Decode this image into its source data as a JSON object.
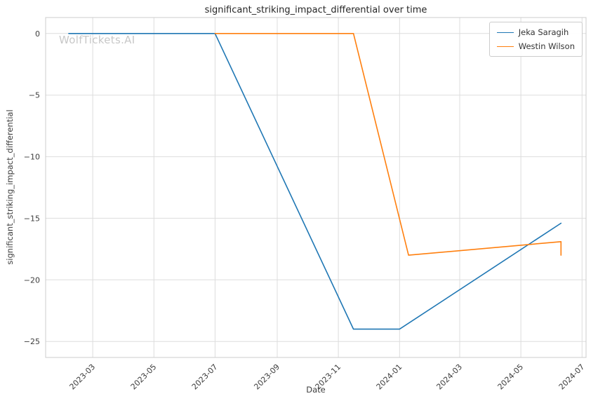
{
  "watermark": "WolfTickets.AI",
  "chart_data": {
    "type": "line",
    "title": "significant_striking_impact_differential over time",
    "xlabel": "Date",
    "ylabel": "significant_striking_impact_differential",
    "grid": true,
    "legend_position": "upper right",
    "xlim": [
      "2023-01-13",
      "2024-07-05"
    ],
    "ylim": [
      -26.3,
      1.3
    ],
    "x_ticks": [
      {
        "value": "2023-03-01",
        "label": "2023-03"
      },
      {
        "value": "2023-05-01",
        "label": "2023-05"
      },
      {
        "value": "2023-07-01",
        "label": "2023-07"
      },
      {
        "value": "2023-09-01",
        "label": "2023-09"
      },
      {
        "value": "2023-11-01",
        "label": "2023-11"
      },
      {
        "value": "2024-01-01",
        "label": "2024-01"
      },
      {
        "value": "2024-03-01",
        "label": "2024-03"
      },
      {
        "value": "2024-05-01",
        "label": "2024-05"
      },
      {
        "value": "2024-07-01",
        "label": "2024-07"
      }
    ],
    "y_ticks": [
      0,
      -5,
      -10,
      -15,
      -20,
      -25
    ],
    "series": [
      {
        "name": "Jeka Saragih",
        "color": "#1f77b4",
        "points": [
          [
            "2023-02-05",
            0
          ],
          [
            "2023-07-01",
            0
          ],
          [
            "2023-11-16",
            -24
          ],
          [
            "2024-01-01",
            -24
          ],
          [
            "2024-06-10",
            -15.4
          ]
        ]
      },
      {
        "name": "Westin Wilson",
        "color": "#ff7f0e",
        "points": [
          [
            "2023-07-01",
            0
          ],
          [
            "2023-11-16",
            0
          ],
          [
            "2024-01-10",
            -18
          ],
          [
            "2024-06-10",
            -16.9
          ],
          [
            "2024-06-10",
            -18
          ]
        ]
      }
    ],
    "style": {
      "grid_color": "#dddddd",
      "spine_color": "#cccccc",
      "tick_color": "#3d3d3d",
      "title_color": "#262626",
      "watermark_color": "#c8c8c8"
    }
  }
}
